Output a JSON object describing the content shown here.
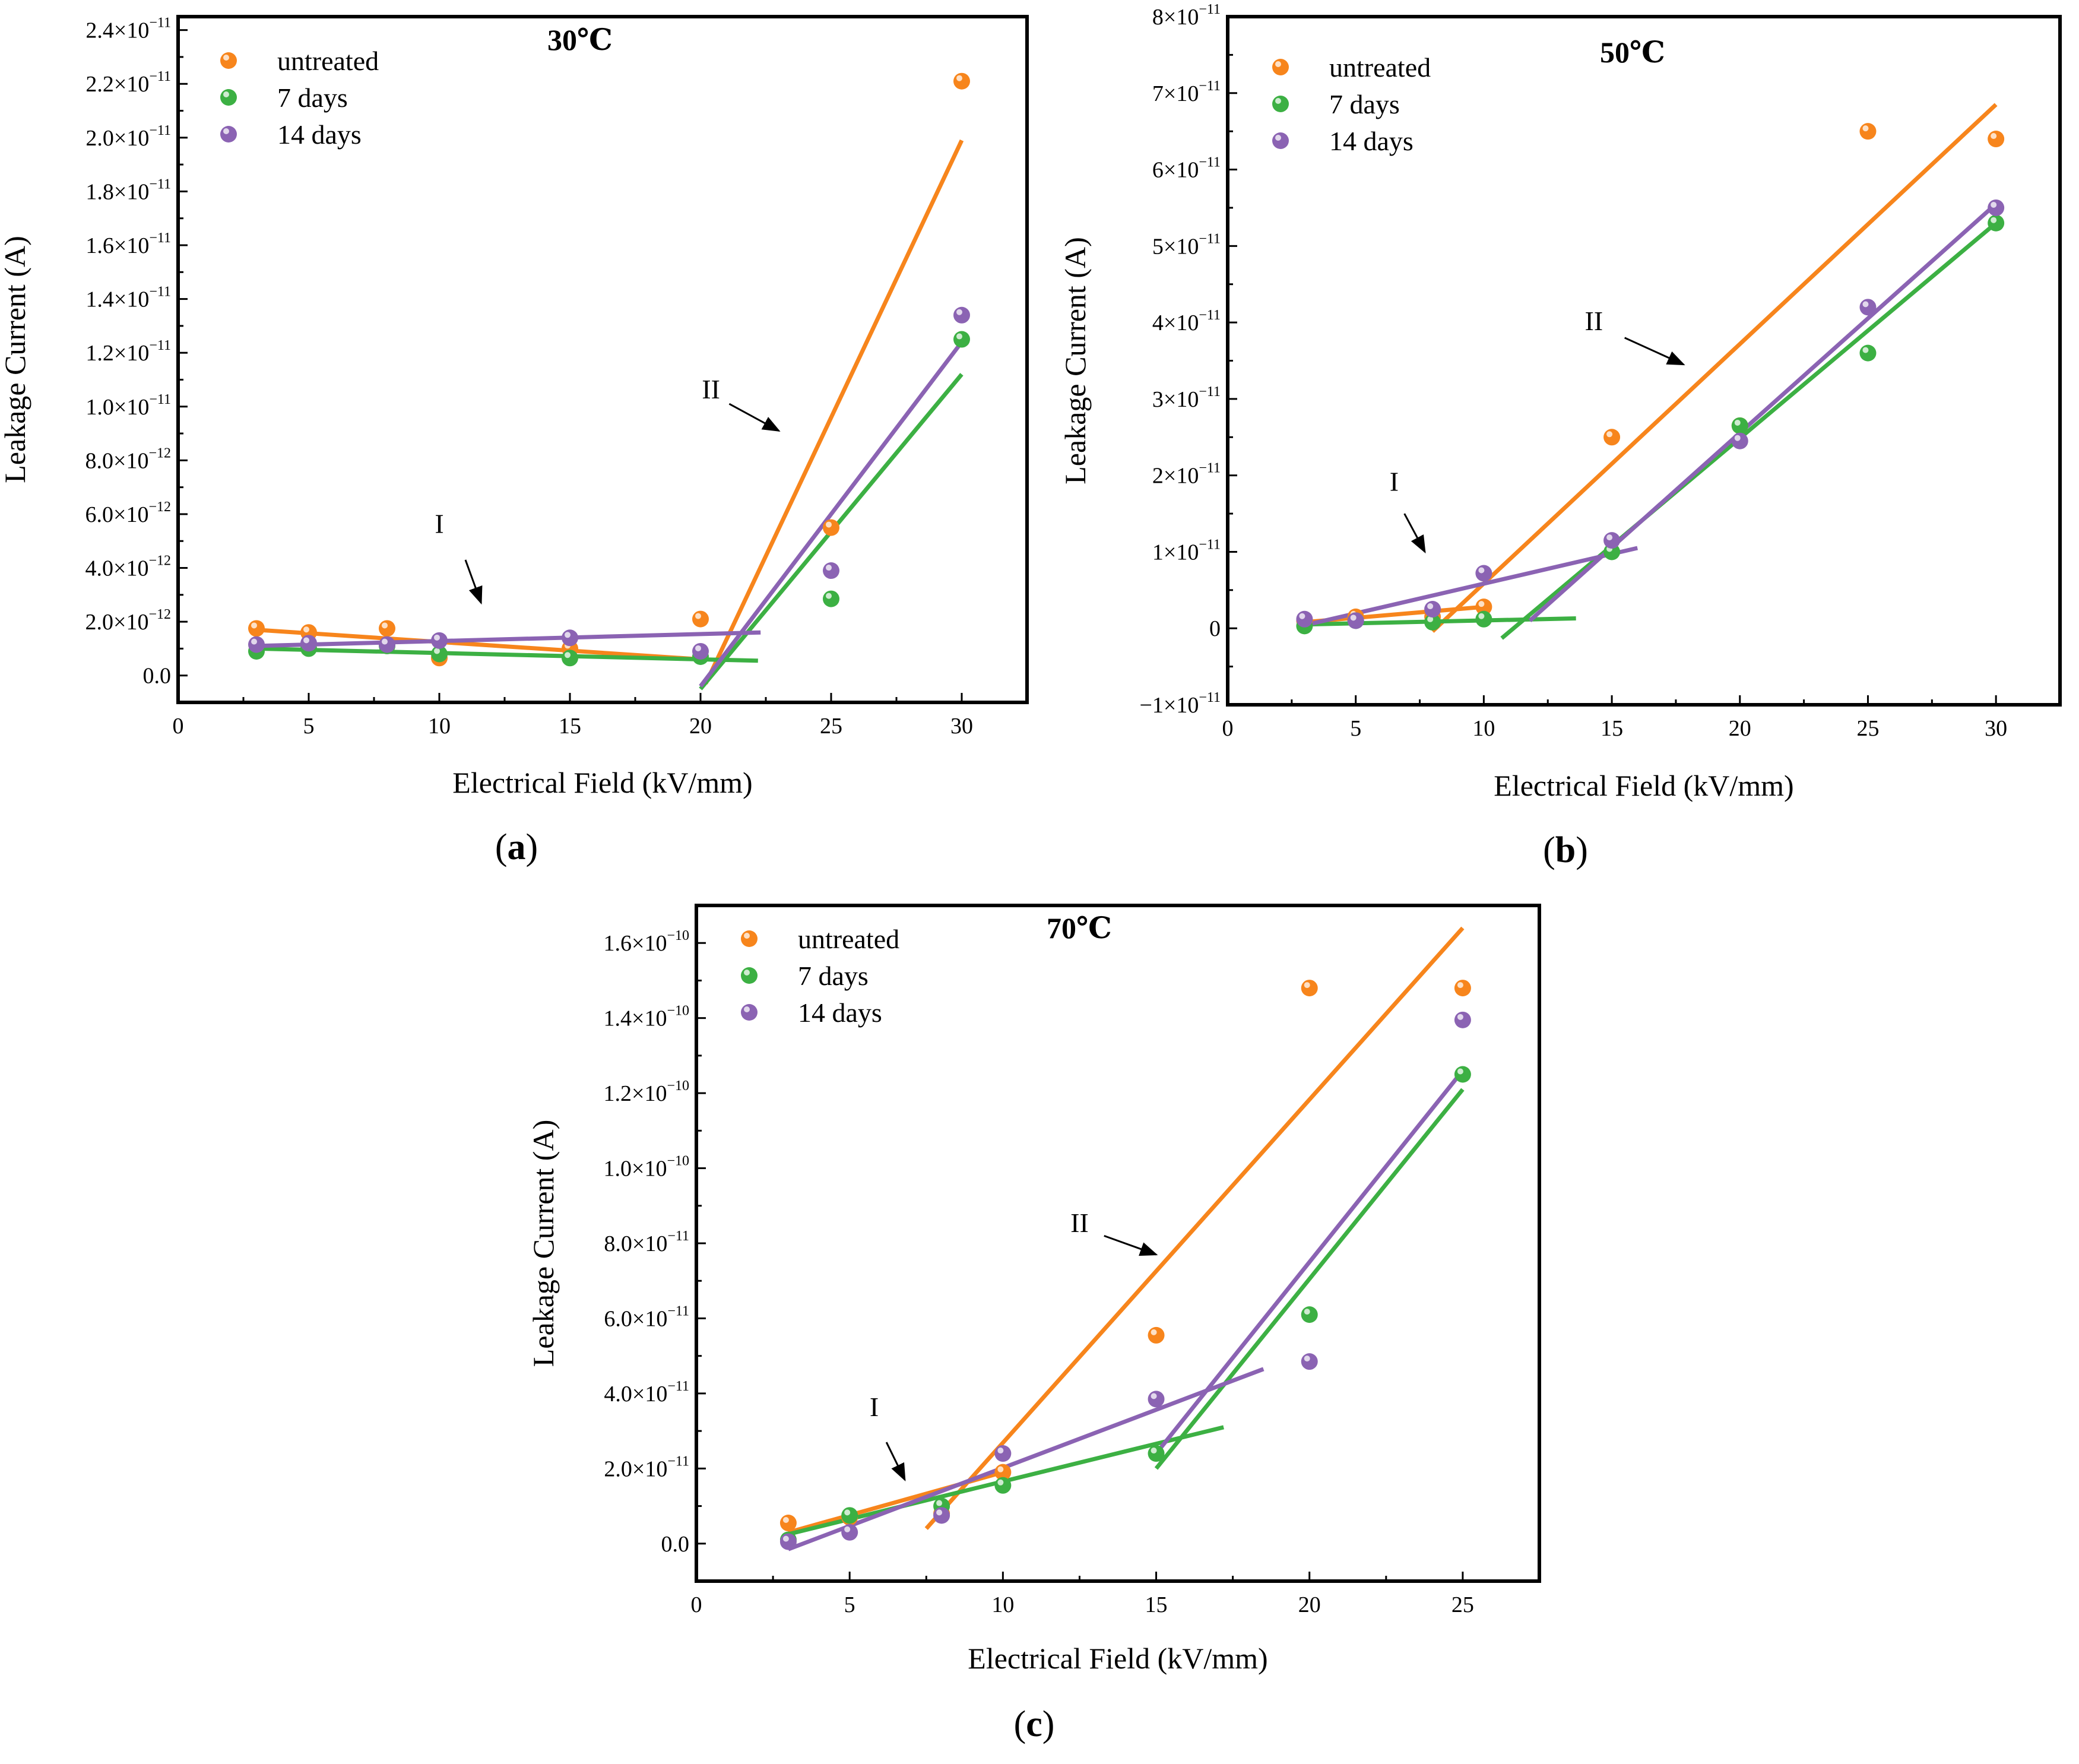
{
  "figure": {
    "panel_labels": [
      "(a)",
      "(b)",
      "(c)"
    ]
  },
  "chart_data": [
    {
      "type": "scatter",
      "panel": "a",
      "title": "30℃",
      "xlabel": "Electrical Field (kV/mm)",
      "ylabel": "Leakage Current (A)",
      "xlim": [
        0,
        32.5
      ],
      "ylim": [
        -1e-12,
        2.45e-11
      ],
      "xticks": [
        0,
        5,
        10,
        15,
        20,
        25,
        30
      ],
      "yticks": [
        {
          "v": 0,
          "m": "0.0",
          "e": ""
        },
        {
          "v": 2e-12,
          "m": "2.0×10",
          "e": "−12"
        },
        {
          "v": 4e-12,
          "m": "4.0×10",
          "e": "−12"
        },
        {
          "v": 6e-12,
          "m": "6.0×10",
          "e": "−12"
        },
        {
          "v": 8e-12,
          "m": "8.0×10",
          "e": "−12"
        },
        {
          "v": 1e-11,
          "m": "1.0×10",
          "e": "−11"
        },
        {
          "v": 1.2e-11,
          "m": "1.2×10",
          "e": "−11"
        },
        {
          "v": 1.4e-11,
          "m": "1.4×10",
          "e": "−11"
        },
        {
          "v": 1.6e-11,
          "m": "1.6×10",
          "e": "−11"
        },
        {
          "v": 1.8e-11,
          "m": "1.8×10",
          "e": "−11"
        },
        {
          "v": 2e-11,
          "m": "2.0×10",
          "e": "−11"
        },
        {
          "v": 2.2e-11,
          "m": "2.2×10",
          "e": "−11"
        },
        {
          "v": 2.4e-11,
          "m": "2.4×10",
          "e": "−11"
        }
      ],
      "legend": {
        "position": "top-left"
      },
      "series": [
        {
          "name": "untreated",
          "color": "#f7851c",
          "x": [
            3,
            5,
            8,
            10,
            15,
            20,
            25,
            30
          ],
          "y": [
            1.75e-12,
            1.6e-12,
            1.75e-12,
            6.5e-13,
            1e-12,
            2.1e-12,
            5.5e-12,
            2.21e-11
          ],
          "fits": [
            [
              [
                3,
                1.7e-12
              ],
              [
                20,
                6e-13
              ]
            ],
            [
              [
                20.2,
                -3e-13
              ],
              [
                30,
                1.99e-11
              ]
            ]
          ]
        },
        {
          "name": "7 days",
          "color": "#3cb043",
          "x": [
            3,
            5,
            8,
            10,
            15,
            20,
            25,
            30
          ],
          "y": [
            9e-13,
            1e-12,
            1.1e-12,
            8e-13,
            6.5e-13,
            7e-13,
            2.85e-12,
            1.25e-11
          ],
          "fits": [
            [
              [
                3,
                1e-12
              ],
              [
                22.2,
                5.5e-13
              ]
            ],
            [
              [
                20,
                -5e-13
              ],
              [
                30,
                1.12e-11
              ]
            ]
          ]
        },
        {
          "name": "14 days",
          "color": "#8b63b3",
          "x": [
            3,
            5,
            8,
            10,
            15,
            20,
            25,
            30
          ],
          "y": [
            1.15e-12,
            1.2e-12,
            1.15e-12,
            1.3e-12,
            1.4e-12,
            9e-13,
            3.9e-12,
            1.34e-11
          ],
          "fits": [
            [
              [
                3,
                1.1e-12
              ],
              [
                22.3,
                1.6e-12
              ]
            ],
            [
              [
                20,
                -4e-13
              ],
              [
                30,
                1.24e-11
              ]
            ]
          ]
        }
      ],
      "annotations": [
        {
          "text": "I",
          "x": 10,
          "y": 5.3e-12,
          "arrow_from": [
            11,
            4.3e-12
          ],
          "arrow_to": [
            11.6,
            2.7e-12
          ]
        },
        {
          "text": "II",
          "x": 20.4,
          "y": 1.03e-11,
          "arrow_from": [
            21.1,
            1.01e-11
          ],
          "arrow_to": [
            23,
            9.1e-12
          ]
        }
      ]
    },
    {
      "type": "scatter",
      "panel": "b",
      "title": "50℃",
      "xlabel": "Electrical Field (kV/mm)",
      "ylabel": "Leakage Current (A)",
      "xlim": [
        0,
        32.5
      ],
      "ylim": [
        -1e-11,
        8e-11
      ],
      "xticks": [
        0,
        5,
        10,
        15,
        20,
        25,
        30
      ],
      "yticks": [
        {
          "v": -1e-11,
          "m": "−1×10",
          "e": "−11"
        },
        {
          "v": 0,
          "m": "0",
          "e": ""
        },
        {
          "v": 1e-11,
          "m": "1×10",
          "e": "−11"
        },
        {
          "v": 2e-11,
          "m": "2×10",
          "e": "−11"
        },
        {
          "v": 3e-11,
          "m": "3×10",
          "e": "−11"
        },
        {
          "v": 4e-11,
          "m": "4×10",
          "e": "−11"
        },
        {
          "v": 5e-11,
          "m": "5×10",
          "e": "−11"
        },
        {
          "v": 6e-11,
          "m": "6×10",
          "e": "−11"
        },
        {
          "v": 7e-11,
          "m": "7×10",
          "e": "−11"
        },
        {
          "v": 8e-11,
          "m": "8×10",
          "e": "−11"
        }
      ],
      "legend": {
        "position": "top-left"
      },
      "series": [
        {
          "name": "untreated",
          "color": "#f7851c",
          "x": [
            3,
            5,
            8,
            10,
            15,
            20,
            25,
            30
          ],
          "y": [
            1e-12,
            1.5e-12,
            1.5e-12,
            2.8e-12,
            2.5e-11,
            2.65e-11,
            6.5e-11,
            6.4e-11
          ],
          "fits": [
            [
              [
                3,
                8e-13
              ],
              [
                10,
                2.8e-12
              ]
            ],
            [
              [
                8,
                -4e-13
              ],
              [
                30,
                6.85e-11
              ]
            ]
          ]
        },
        {
          "name": "7 days",
          "color": "#3cb043",
          "x": [
            3,
            5,
            8,
            10,
            15,
            20,
            25,
            30
          ],
          "y": [
            3e-13,
            1e-12,
            8e-13,
            1.2e-12,
            1e-11,
            2.65e-11,
            3.6e-11,
            5.3e-11
          ],
          "fits": [
            [
              [
                3,
                5e-13
              ],
              [
                13.6,
                1.3e-12
              ]
            ],
            [
              [
                10.7,
                -1.3e-12
              ],
              [
                30,
                5.3e-11
              ]
            ]
          ]
        },
        {
          "name": "14 days",
          "color": "#8b63b3",
          "x": [
            3,
            5,
            8,
            10,
            15,
            20,
            25,
            30
          ],
          "y": [
            1.2e-12,
            1e-12,
            2.5e-12,
            7.2e-12,
            1.15e-11,
            2.45e-11,
            4.2e-11,
            5.5e-11
          ],
          "fits": [
            [
              [
                3,
                4e-13
              ],
              [
                16,
                1.05e-11
              ]
            ],
            [
              [
                11.8,
                1e-12
              ],
              [
                30,
                5.55e-11
              ]
            ]
          ]
        }
      ],
      "annotations": [
        {
          "text": "I",
          "x": 6.5,
          "y": 1.8e-11,
          "arrow_from": [
            6.9,
            1.5e-11
          ],
          "arrow_to": [
            7.7,
            1e-11
          ]
        },
        {
          "text": "II",
          "x": 14.3,
          "y": 3.9e-11,
          "arrow_from": [
            15.5,
            3.8e-11
          ],
          "arrow_to": [
            17.8,
            3.45e-11
          ]
        }
      ]
    },
    {
      "type": "scatter",
      "panel": "c",
      "title": "70℃",
      "xlabel": "Electrical Field (kV/mm)",
      "ylabel": "Leakage Current (A)",
      "xlim": [
        0,
        27.5
      ],
      "ylim": [
        -1e-11,
        1.7e-10
      ],
      "xticks": [
        0,
        5,
        10,
        15,
        20,
        25
      ],
      "yticks": [
        {
          "v": 0,
          "m": "0.0",
          "e": ""
        },
        {
          "v": 2e-11,
          "m": "2.0×10",
          "e": "−11"
        },
        {
          "v": 4e-11,
          "m": "4.0×10",
          "e": "−11"
        },
        {
          "v": 6e-11,
          "m": "6.0×10",
          "e": "−11"
        },
        {
          "v": 8e-11,
          "m": "8.0×10",
          "e": "−11"
        },
        {
          "v": 1e-10,
          "m": "1.0×10",
          "e": "−10"
        },
        {
          "v": 1.2e-10,
          "m": "1.2×10",
          "e": "−10"
        },
        {
          "v": 1.4e-10,
          "m": "1.4×10",
          "e": "−10"
        },
        {
          "v": 1.6e-10,
          "m": "1.6×10",
          "e": "−10"
        }
      ],
      "legend": {
        "position": "top-left"
      },
      "series": [
        {
          "name": "untreated",
          "color": "#f7851c",
          "x": [
            3,
            5,
            8,
            10,
            15,
            20,
            25
          ],
          "y": [
            5.5e-12,
            7e-12,
            8e-12,
            1.9e-11,
            5.55e-11,
            1.48e-10,
            1.48e-10
          ],
          "fits": [
            [
              [
                3,
                3e-12
              ],
              [
                10,
                1.9e-11
              ]
            ],
            [
              [
                7.5,
                4e-12
              ],
              [
                25,
                1.64e-10
              ]
            ]
          ]
        },
        {
          "name": "7 days",
          "color": "#3cb043",
          "x": [
            3,
            5,
            8,
            10,
            15,
            20,
            25
          ],
          "y": [
            1e-12,
            7.5e-12,
            1e-11,
            1.55e-11,
            2.4e-11,
            6.1e-11,
            1.25e-10
          ],
          "fits": [
            [
              [
                3,
                2.5e-12
              ],
              [
                17.2,
                3.1e-11
              ]
            ],
            [
              [
                15,
                2e-11
              ],
              [
                25,
                1.21e-10
              ]
            ]
          ]
        },
        {
          "name": "14 days",
          "color": "#8b63b3",
          "x": [
            3,
            5,
            8,
            10,
            15,
            20,
            25
          ],
          "y": [
            5e-13,
            3e-12,
            7.5e-12,
            2.4e-11,
            3.85e-11,
            4.85e-11,
            1.395e-10
          ],
          "fits": [
            [
              [
                3,
                -1.5e-12
              ],
              [
                18.5,
                4.65e-11
              ]
            ],
            [
              [
                15,
                2.4e-11
              ],
              [
                25,
                1.26e-10
              ]
            ]
          ]
        }
      ],
      "annotations": [
        {
          "text": "I",
          "x": 5.8,
          "y": 3.4e-11,
          "arrow_from": [
            6.2,
            2.7e-11
          ],
          "arrow_to": [
            6.8,
            1.7e-11
          ]
        },
        {
          "text": "II",
          "x": 12.5,
          "y": 8.3e-11,
          "arrow_from": [
            13.3,
            8.2e-11
          ],
          "arrow_to": [
            15,
            7.7e-11
          ]
        }
      ]
    }
  ]
}
